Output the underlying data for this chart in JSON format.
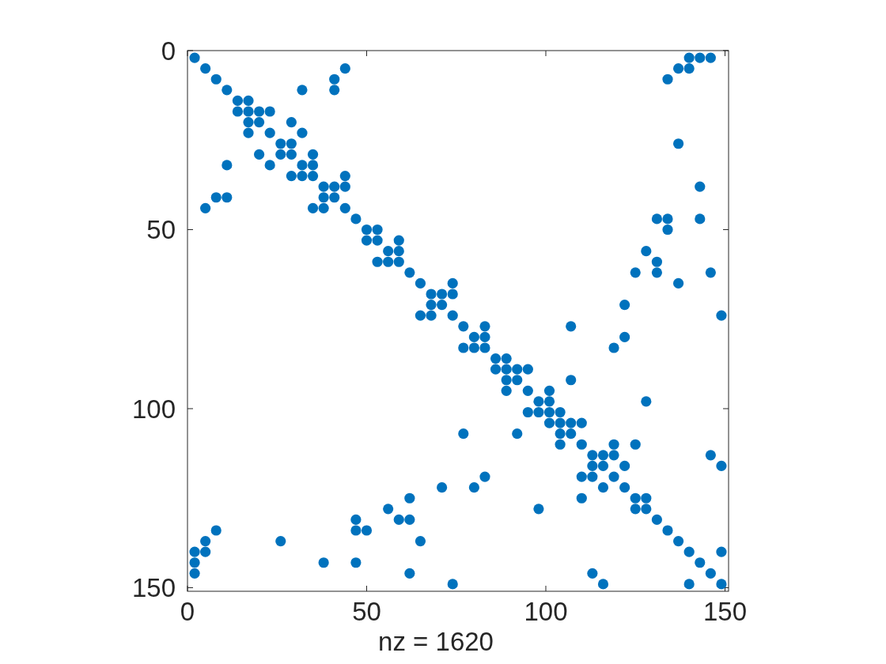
{
  "chart_data": {
    "type": "scatter",
    "xlabel": "nz = 1620",
    "color": "#0072bd",
    "marker": "circle",
    "xlim": [
      0,
      151
    ],
    "xticks": [
      0,
      50,
      100,
      150
    ],
    "ylim": [
      151,
      0
    ],
    "yticks": [
      0,
      50,
      100,
      150
    ],
    "x": [
      2,
      140,
      143,
      146,
      5,
      44,
      137,
      140,
      8,
      41,
      134,
      11,
      32,
      41,
      14,
      17,
      14,
      17,
      20,
      23,
      17,
      20,
      29,
      17,
      23,
      32,
      26,
      29,
      137,
      20,
      26,
      29,
      35,
      11,
      23,
      32,
      35,
      29,
      32,
      35,
      44,
      38,
      41,
      44,
      143,
      8,
      11,
      38,
      41,
      5,
      35,
      38,
      44,
      47,
      131,
      134,
      143,
      50,
      53,
      134,
      50,
      53,
      59,
      56,
      59,
      128,
      53,
      56,
      59,
      131,
      62,
      125,
      131,
      146,
      65,
      74,
      137,
      68,
      71,
      74,
      68,
      71,
      122,
      65,
      68,
      74,
      149,
      77,
      83,
      107,
      80,
      83,
      122,
      77,
      80,
      83,
      119,
      86,
      89,
      86,
      89,
      92,
      95,
      89,
      92,
      107,
      89,
      95,
      101,
      98,
      101,
      128,
      95,
      98,
      101,
      104,
      101,
      104,
      107,
      110,
      77,
      92,
      104,
      107,
      104,
      110,
      119,
      125,
      113,
      116,
      119,
      146,
      113,
      116,
      122,
      149,
      83,
      110,
      113,
      119,
      71,
      80,
      116,
      122,
      62,
      110,
      125,
      128,
      56,
      98,
      125,
      128,
      47,
      59,
      62,
      131,
      8,
      47,
      50,
      134,
      5,
      26,
      65,
      137,
      2,
      5,
      140,
      149,
      2,
      38,
      47,
      143,
      2,
      62,
      113,
      146,
      74,
      116,
      140,
      149
    ],
    "values": [
      2,
      2,
      2,
      2,
      5,
      5,
      5,
      5,
      8,
      8,
      8,
      11,
      11,
      11,
      14,
      14,
      17,
      17,
      17,
      17,
      20,
      20,
      20,
      23,
      23,
      23,
      26,
      26,
      26,
      29,
      29,
      29,
      29,
      32,
      32,
      32,
      32,
      35,
      35,
      35,
      35,
      38,
      38,
      38,
      38,
      41,
      41,
      41,
      41,
      44,
      44,
      44,
      44,
      47,
      47,
      47,
      47,
      50,
      50,
      50,
      53,
      53,
      53,
      56,
      56,
      56,
      59,
      59,
      59,
      59,
      62,
      62,
      62,
      62,
      65,
      65,
      65,
      68,
      68,
      68,
      71,
      71,
      71,
      74,
      74,
      74,
      74,
      77,
      77,
      77,
      80,
      80,
      80,
      83,
      83,
      83,
      83,
      86,
      86,
      89,
      89,
      89,
      89,
      92,
      92,
      92,
      95,
      95,
      95,
      98,
      98,
      98,
      101,
      101,
      101,
      101,
      104,
      104,
      104,
      104,
      107,
      107,
      107,
      107,
      110,
      110,
      110,
      110,
      113,
      113,
      113,
      113,
      116,
      116,
      116,
      116,
      119,
      119,
      119,
      119,
      122,
      122,
      122,
      122,
      125,
      125,
      125,
      125,
      128,
      128,
      128,
      128,
      131,
      131,
      131,
      131,
      134,
      134,
      134,
      134,
      137,
      137,
      137,
      137,
      140,
      140,
      140,
      140,
      143,
      143,
      143,
      143,
      146,
      146,
      146,
      146,
      149,
      149,
      149,
      149
    ]
  }
}
